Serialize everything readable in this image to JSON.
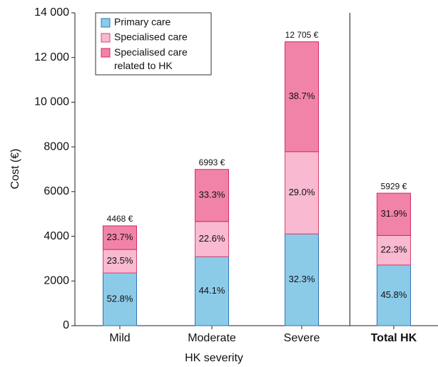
{
  "chart_data": {
    "type": "stacked_bar",
    "xlabel": "HK severity",
    "ylabel": "Cost (€)",
    "categories": [
      "Mild",
      "Moderate",
      "Severe",
      "Total HK"
    ],
    "categories_bold": [
      false,
      false,
      false,
      true
    ],
    "separator_before_category": 3,
    "series": [
      {
        "name": "Primary care",
        "color": "#8ccbe8",
        "edge": "#2f74b5",
        "values": [
          2359,
          3084,
          4104,
          2715
        ],
        "labels": [
          "52.8%",
          "44.1%",
          "32.3%",
          "45.8%"
        ]
      },
      {
        "name": "Specialised care",
        "color": "#f8b9d1",
        "edge": "#d8456f",
        "values": [
          1050,
          1580,
          3684,
          1322
        ],
        "labels": [
          "23.5%",
          "22.6%",
          "29.0%",
          "22.3%"
        ]
      },
      {
        "name": "Specialised care related to HK",
        "color": "#f283a8",
        "edge": "#d52a5f",
        "values": [
          1059,
          2329,
          4917,
          1892
        ],
        "labels": [
          "23.7%",
          "33.3%",
          "38.7%",
          "31.9%"
        ]
      }
    ],
    "total_labels": [
      "4468 €",
      "6993 €",
      "12 705 €",
      "5929 €"
    ],
    "ylim": [
      0,
      14000
    ],
    "yticks": [
      0,
      2000,
      4000,
      6000,
      8000,
      {
        "value": 10000,
        "label": "10 000"
      },
      {
        "value": 12000,
        "label": "12 000"
      },
      {
        "value": 14000,
        "label": "14 000"
      }
    ],
    "legend": "upper left"
  }
}
